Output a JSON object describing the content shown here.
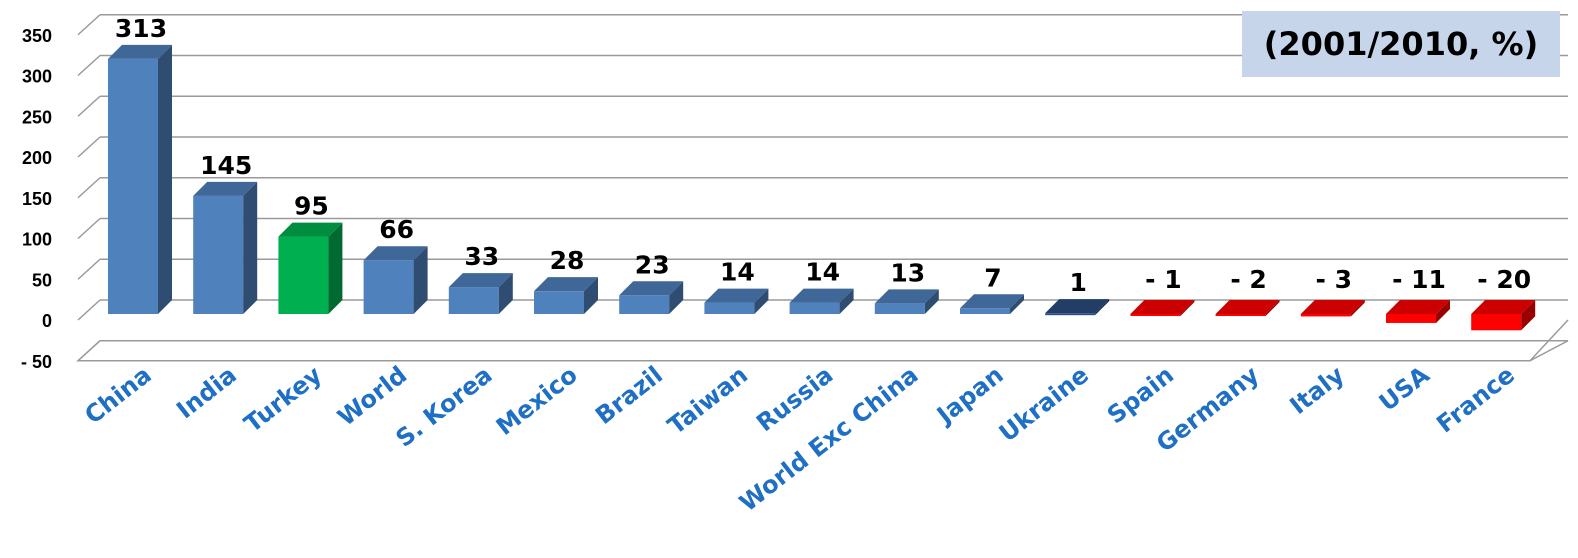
{
  "chart_data": {
    "type": "bar",
    "subtitle": "(2001/2010, %)",
    "categories": [
      "China",
      "India",
      "Turkey",
      "World",
      "S. Korea",
      "Mexico",
      "Brazil",
      "Taiwan",
      "Russia",
      "World Exc China",
      "Japan",
      "Ukraine",
      "Spain",
      "Germany",
      "Italy",
      "USA",
      "France"
    ],
    "values": [
      313,
      145,
      95,
      66,
      33,
      28,
      23,
      14,
      14,
      13,
      7,
      1,
      -1,
      -2,
      -3,
      -11,
      -20
    ],
    "data_labels": [
      "313",
      "145",
      "95",
      "66",
      "33",
      "28",
      "23",
      "14",
      "14",
      "13",
      "7",
      "1",
      "- 1",
      "- 2",
      "- 3",
      "- 11",
      "- 20"
    ],
    "ylim": [
      -50,
      350
    ],
    "yticks": [
      350,
      300,
      250,
      200,
      150,
      100,
      50,
      0,
      -50
    ],
    "ytick_labels": [
      "350",
      "300",
      "250",
      "200",
      "150",
      "100",
      "50",
      "0",
      "- 50"
    ],
    "grid": true,
    "colors": {
      "positive": "#4f81bd",
      "highlight": "#00b050",
      "near_zero": "#2a4d7f",
      "negative": "#ff0000",
      "category_text": "#1f6fc5"
    },
    "highlight_category": "Turkey"
  }
}
